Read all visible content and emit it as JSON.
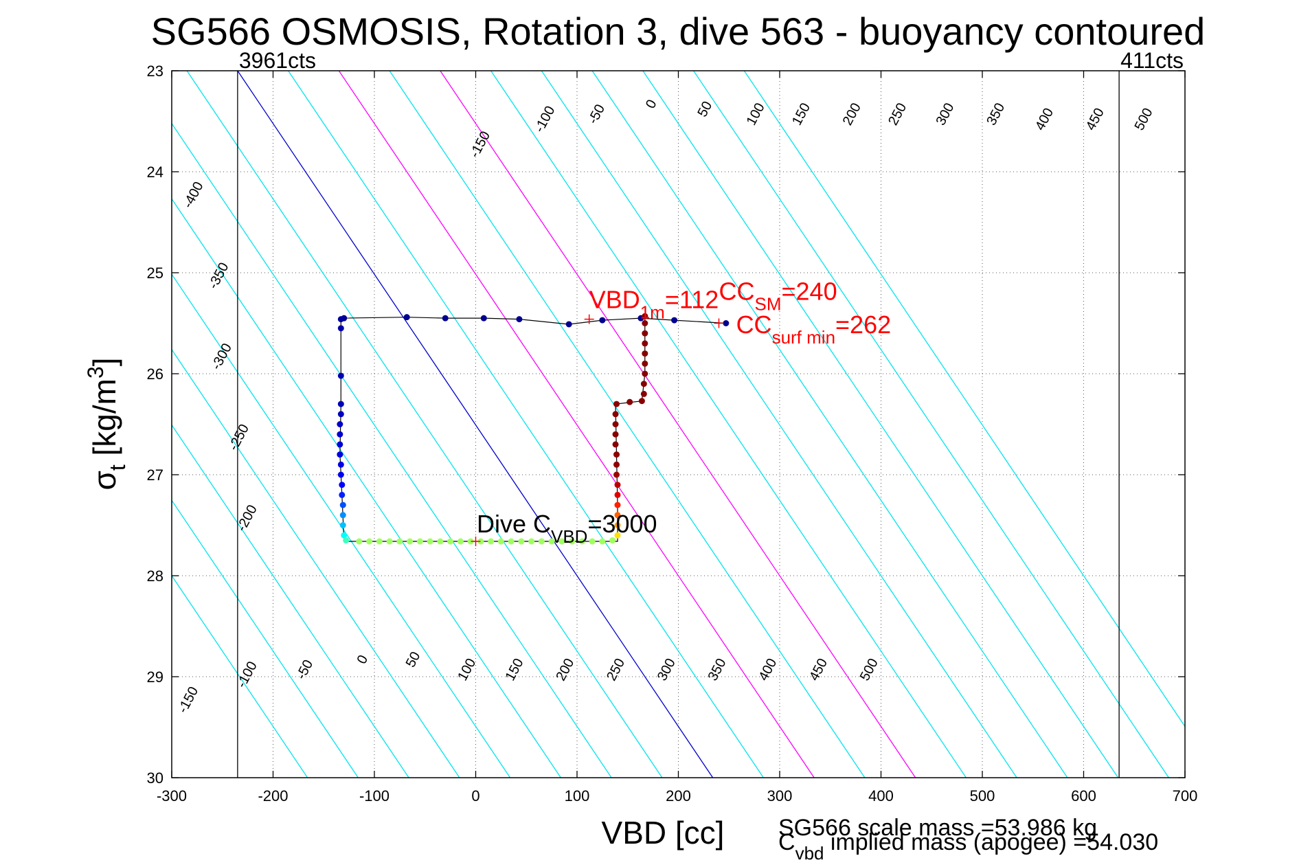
{
  "chart_data": {
    "type": "scatter",
    "title": "SG566 OSMOSIS, Rotation 3, dive 563 - buoyancy contoured",
    "xlabel": "VBD [cc]",
    "ylabel": {
      "base": "σ",
      "sub": "t",
      "main": " [kg/m",
      "sup": "3",
      "close": "]"
    },
    "xlim": [
      -300,
      700
    ],
    "ylim": [
      23,
      30
    ],
    "y_reversed": true,
    "x_ticks": [
      -300,
      -200,
      -100,
      0,
      100,
      200,
      300,
      400,
      500,
      600,
      700
    ],
    "x_tick_labels": [
      "-300",
      "-200",
      "-100",
      "0",
      "100",
      "200",
      "300",
      "400",
      "500",
      "600",
      "700"
    ],
    "y_ticks": [
      23,
      24,
      25,
      26,
      27,
      28,
      29,
      30
    ],
    "y_tick_labels": [
      "23",
      "24",
      "25",
      "26",
      "27",
      "28",
      "29",
      "30"
    ],
    "grid": true,
    "limit_lines": [
      {
        "x": -235,
        "label": "3961cts"
      },
      {
        "x": 635,
        "label": "411cts"
      }
    ],
    "buoyancy_contours": {
      "levels": [
        -400,
        -350,
        -300,
        -250,
        -200,
        -150,
        -100,
        -50,
        0,
        50,
        100,
        150,
        200,
        250,
        300,
        350,
        400,
        450,
        500
      ],
      "x_at_sigma23": [
        -635,
        -585,
        -535,
        -485,
        -435,
        -385,
        -335,
        -285,
        -235,
        -185,
        -135,
        -85,
        -35,
        15,
        65,
        115,
        165,
        215,
        265
      ],
      "slope_cc_per_sigma": 67,
      "neutral_color": "#0000cc",
      "highlight_levels": [
        100,
        200
      ],
      "highlight_color": "#ff00ff",
      "default_color": "#00e5ee",
      "top_labels": [
        {
          "text": "-400",
          "x": -275,
          "y": 24.25
        },
        {
          "text": "-350",
          "x": -250,
          "y": 25.05
        },
        {
          "text": "-300",
          "x": -247,
          "y": 25.85
        },
        {
          "text": "-250",
          "x": -230,
          "y": 26.65
        },
        {
          "text": "-200",
          "x": -222,
          "y": 27.45
        },
        {
          "text": "-150",
          "x": 8,
          "y": 23.75
        },
        {
          "text": "-100",
          "x": 72,
          "y": 23.5
        },
        {
          "text": "-50",
          "x": 123,
          "y": 23.45
        },
        {
          "text": "0",
          "x": 177,
          "y": 23.35
        },
        {
          "text": "50",
          "x": 230,
          "y": 23.4
        },
        {
          "text": "100",
          "x": 280,
          "y": 23.45
        },
        {
          "text": "150",
          "x": 325,
          "y": 23.45
        },
        {
          "text": "200",
          "x": 375,
          "y": 23.45
        },
        {
          "text": "250",
          "x": 420,
          "y": 23.45
        },
        {
          "text": "300",
          "x": 467,
          "y": 23.45
        },
        {
          "text": "350",
          "x": 517,
          "y": 23.45
        },
        {
          "text": "400",
          "x": 565,
          "y": 23.5
        },
        {
          "text": "450",
          "x": 615,
          "y": 23.5
        },
        {
          "text": "500",
          "x": 663,
          "y": 23.5
        }
      ],
      "bottom_labels": [
        {
          "text": "-150",
          "x": -280,
          "y": 29.25
        },
        {
          "text": "-100",
          "x": -222,
          "y": 29.0
        },
        {
          "text": "-50",
          "x": -165,
          "y": 28.95
        },
        {
          "text": "0",
          "x": -108,
          "y": 28.85
        },
        {
          "text": "50",
          "x": -58,
          "y": 28.85
        },
        {
          "text": "100",
          "x": -5,
          "y": 28.95
        },
        {
          "text": "150",
          "x": 42,
          "y": 28.95
        },
        {
          "text": "200",
          "x": 92,
          "y": 28.95
        },
        {
          "text": "250",
          "x": 142,
          "y": 28.95
        },
        {
          "text": "300",
          "x": 192,
          "y": 28.95
        },
        {
          "text": "350",
          "x": 242,
          "y": 28.95
        },
        {
          "text": "400",
          "x": 292,
          "y": 28.95
        },
        {
          "text": "450",
          "x": 342,
          "y": 28.95
        },
        {
          "text": "500",
          "x": 392,
          "y": 28.95
        }
      ]
    },
    "series": [
      {
        "points": [
          {
            "x": -130,
            "y": 25.45,
            "c": "#00008f"
          },
          {
            "x": -68,
            "y": 25.44,
            "c": "#00008f"
          },
          {
            "x": -30,
            "y": 25.45,
            "c": "#00008f"
          },
          {
            "x": 8,
            "y": 25.45,
            "c": "#00008f"
          },
          {
            "x": 43,
            "y": 25.46,
            "c": "#00008f"
          },
          {
            "x": 92,
            "y": 25.51,
            "c": "#00008f"
          },
          {
            "x": 125,
            "y": 25.47,
            "c": "#00008f"
          },
          {
            "x": 163,
            "y": 25.45,
            "c": "#00008f"
          },
          {
            "x": 196,
            "y": 25.47,
            "c": "#00008f"
          },
          {
            "x": 247,
            "y": 25.5,
            "c": "#00008f"
          },
          {
            "x": -133,
            "y": 25.46,
            "c": "#00009f"
          },
          {
            "x": -133,
            "y": 25.55,
            "c": "#0000a8"
          },
          {
            "x": -133,
            "y": 26.02,
            "c": "#0000b0"
          },
          {
            "x": -133,
            "y": 26.3,
            "c": "#0000b8"
          },
          {
            "x": -133,
            "y": 26.4,
            "c": "#0000c0"
          },
          {
            "x": -134,
            "y": 26.5,
            "c": "#0000c8"
          },
          {
            "x": -134,
            "y": 26.6,
            "c": "#0000d0"
          },
          {
            "x": -134,
            "y": 26.7,
            "c": "#0000d8"
          },
          {
            "x": -134,
            "y": 26.8,
            "c": "#0000e0"
          },
          {
            "x": -133,
            "y": 26.9,
            "c": "#0000e8"
          },
          {
            "x": -133,
            "y": 27.0,
            "c": "#0000f0"
          },
          {
            "x": -132,
            "y": 27.1,
            "c": "#0000ff"
          },
          {
            "x": -132,
            "y": 27.2,
            "c": "#0020ff"
          },
          {
            "x": -131,
            "y": 27.3,
            "c": "#0050ff"
          },
          {
            "x": -131,
            "y": 27.4,
            "c": "#0090ff"
          },
          {
            "x": -131,
            "y": 27.5,
            "c": "#00c0ff"
          },
          {
            "x": -130,
            "y": 27.6,
            "c": "#00ffff"
          },
          {
            "x": -128,
            "y": 27.65,
            "c": "#40ffc0"
          },
          {
            "x": -115,
            "y": 27.66,
            "c": "#a0ff60"
          },
          {
            "x": -105,
            "y": 27.66,
            "c": "#a0ff60"
          },
          {
            "x": -95,
            "y": 27.66,
            "c": "#a0ff60"
          },
          {
            "x": -85,
            "y": 27.66,
            "c": "#a0ff60"
          },
          {
            "x": -75,
            "y": 27.66,
            "c": "#a0ff60"
          },
          {
            "x": -65,
            "y": 27.66,
            "c": "#a0ff60"
          },
          {
            "x": -55,
            "y": 27.66,
            "c": "#a0ff60"
          },
          {
            "x": -45,
            "y": 27.66,
            "c": "#a0ff60"
          },
          {
            "x": -35,
            "y": 27.66,
            "c": "#a0ff60"
          },
          {
            "x": -25,
            "y": 27.66,
            "c": "#a0ff60"
          },
          {
            "x": -15,
            "y": 27.66,
            "c": "#a0ff60"
          },
          {
            "x": -5,
            "y": 27.66,
            "c": "#a0ff60"
          },
          {
            "x": 5,
            "y": 27.66,
            "c": "#a0ff60"
          },
          {
            "x": 15,
            "y": 27.66,
            "c": "#a0ff60"
          },
          {
            "x": 25,
            "y": 27.66,
            "c": "#a0ff60"
          },
          {
            "x": 35,
            "y": 27.66,
            "c": "#a0ff60"
          },
          {
            "x": 45,
            "y": 27.66,
            "c": "#a0ff60"
          },
          {
            "x": 55,
            "y": 27.66,
            "c": "#a0ff60"
          },
          {
            "x": 65,
            "y": 27.66,
            "c": "#a0ff60"
          },
          {
            "x": 75,
            "y": 27.66,
            "c": "#a0ff60"
          },
          {
            "x": 85,
            "y": 27.66,
            "c": "#a0ff60"
          },
          {
            "x": 95,
            "y": 27.66,
            "c": "#a0ff60"
          },
          {
            "x": 105,
            "y": 27.66,
            "c": "#a0ff60"
          },
          {
            "x": 115,
            "y": 27.66,
            "c": "#a0ff60"
          },
          {
            "x": 125,
            "y": 27.66,
            "c": "#a0ff60"
          },
          {
            "x": 135,
            "y": 27.65,
            "c": "#a0ff60"
          },
          {
            "x": 140,
            "y": 27.6,
            "c": "#ffe000"
          },
          {
            "x": 140,
            "y": 27.5,
            "c": "#ffa000"
          },
          {
            "x": 140,
            "y": 27.4,
            "c": "#ff6000"
          },
          {
            "x": 140,
            "y": 27.3,
            "c": "#ff2000"
          },
          {
            "x": 140,
            "y": 27.2,
            "c": "#e00000"
          },
          {
            "x": 140,
            "y": 27.1,
            "c": "#c00000"
          },
          {
            "x": 139,
            "y": 27.0,
            "c": "#a00000"
          },
          {
            "x": 139,
            "y": 26.9,
            "c": "#900000"
          },
          {
            "x": 139,
            "y": 26.8,
            "c": "#900000"
          },
          {
            "x": 138,
            "y": 26.7,
            "c": "#880000"
          },
          {
            "x": 138,
            "y": 26.6,
            "c": "#880000"
          },
          {
            "x": 138,
            "y": 26.5,
            "c": "#880000"
          },
          {
            "x": 138,
            "y": 26.4,
            "c": "#880000"
          },
          {
            "x": 139,
            "y": 26.3,
            "c": "#880000"
          },
          {
            "x": 152,
            "y": 26.28,
            "c": "#880000"
          },
          {
            "x": 164,
            "y": 26.27,
            "c": "#880000"
          },
          {
            "x": 166,
            "y": 26.2,
            "c": "#880000"
          },
          {
            "x": 166,
            "y": 26.1,
            "c": "#880000"
          },
          {
            "x": 167,
            "y": 26.0,
            "c": "#880000"
          },
          {
            "x": 167,
            "y": 25.9,
            "c": "#880000"
          },
          {
            "x": 167,
            "y": 25.8,
            "c": "#880000"
          },
          {
            "x": 167,
            "y": 25.7,
            "c": "#880000"
          },
          {
            "x": 167,
            "y": 25.6,
            "c": "#880000"
          },
          {
            "x": 167,
            "y": 25.5,
            "c": "#880000"
          },
          {
            "x": 167,
            "y": 25.43,
            "c": "#880000"
          }
        ]
      }
    ],
    "trace_path": [
      [
        247,
        25.5
      ],
      [
        196,
        25.47
      ],
      [
        163,
        25.45
      ],
      [
        125,
        25.47
      ],
      [
        92,
        25.51
      ],
      [
        43,
        25.46
      ],
      [
        8,
        25.45
      ],
      [
        -30,
        25.45
      ],
      [
        -68,
        25.44
      ],
      [
        -133,
        25.45
      ],
      [
        -133,
        25.55
      ],
      [
        -133,
        26.3
      ],
      [
        -134,
        26.8
      ],
      [
        -132,
        27.2
      ],
      [
        -130,
        27.66
      ],
      [
        140,
        27.66
      ],
      [
        140,
        27.3
      ],
      [
        138,
        26.3
      ],
      [
        164,
        26.27
      ],
      [
        167,
        26.0
      ],
      [
        167,
        25.43
      ]
    ],
    "markers": [
      {
        "x": 112,
        "y": 25.46,
        "c": "#ff0000"
      },
      {
        "x": 240,
        "y": 25.5,
        "c": "#ff0000"
      },
      {
        "x": 0,
        "y": 27.66,
        "c": "#ff0000"
      }
    ],
    "annotations": [
      {
        "key": "vbd1m",
        "main": "VBD",
        "sub": "1m",
        "tail": "=112",
        "color": "#ff0000",
        "x": 112,
        "y": 25.35
      },
      {
        "key": "ccsm",
        "main": "CC",
        "sub": "SM",
        "tail": "=240",
        "color": "#ff0000",
        "x": 240,
        "y": 25.27
      },
      {
        "key": "ccsurf",
        "main": "CC",
        "sub": "surf min",
        "tail": "=262",
        "color": "#ff0000",
        "x": 257,
        "y": 25.6
      },
      {
        "key": "divecvbd",
        "main": "Dive C",
        "sub": "VBD",
        "tail": "=3000",
        "color": "#000000",
        "x": 1,
        "y": 27.57
      }
    ],
    "footer": {
      "scale_mass": "SG566 scale mass =53.986 kg",
      "implied_main": "C",
      "implied_sub": "vbd",
      "implied_tail": " implied mass (apogee) =54.030"
    }
  }
}
